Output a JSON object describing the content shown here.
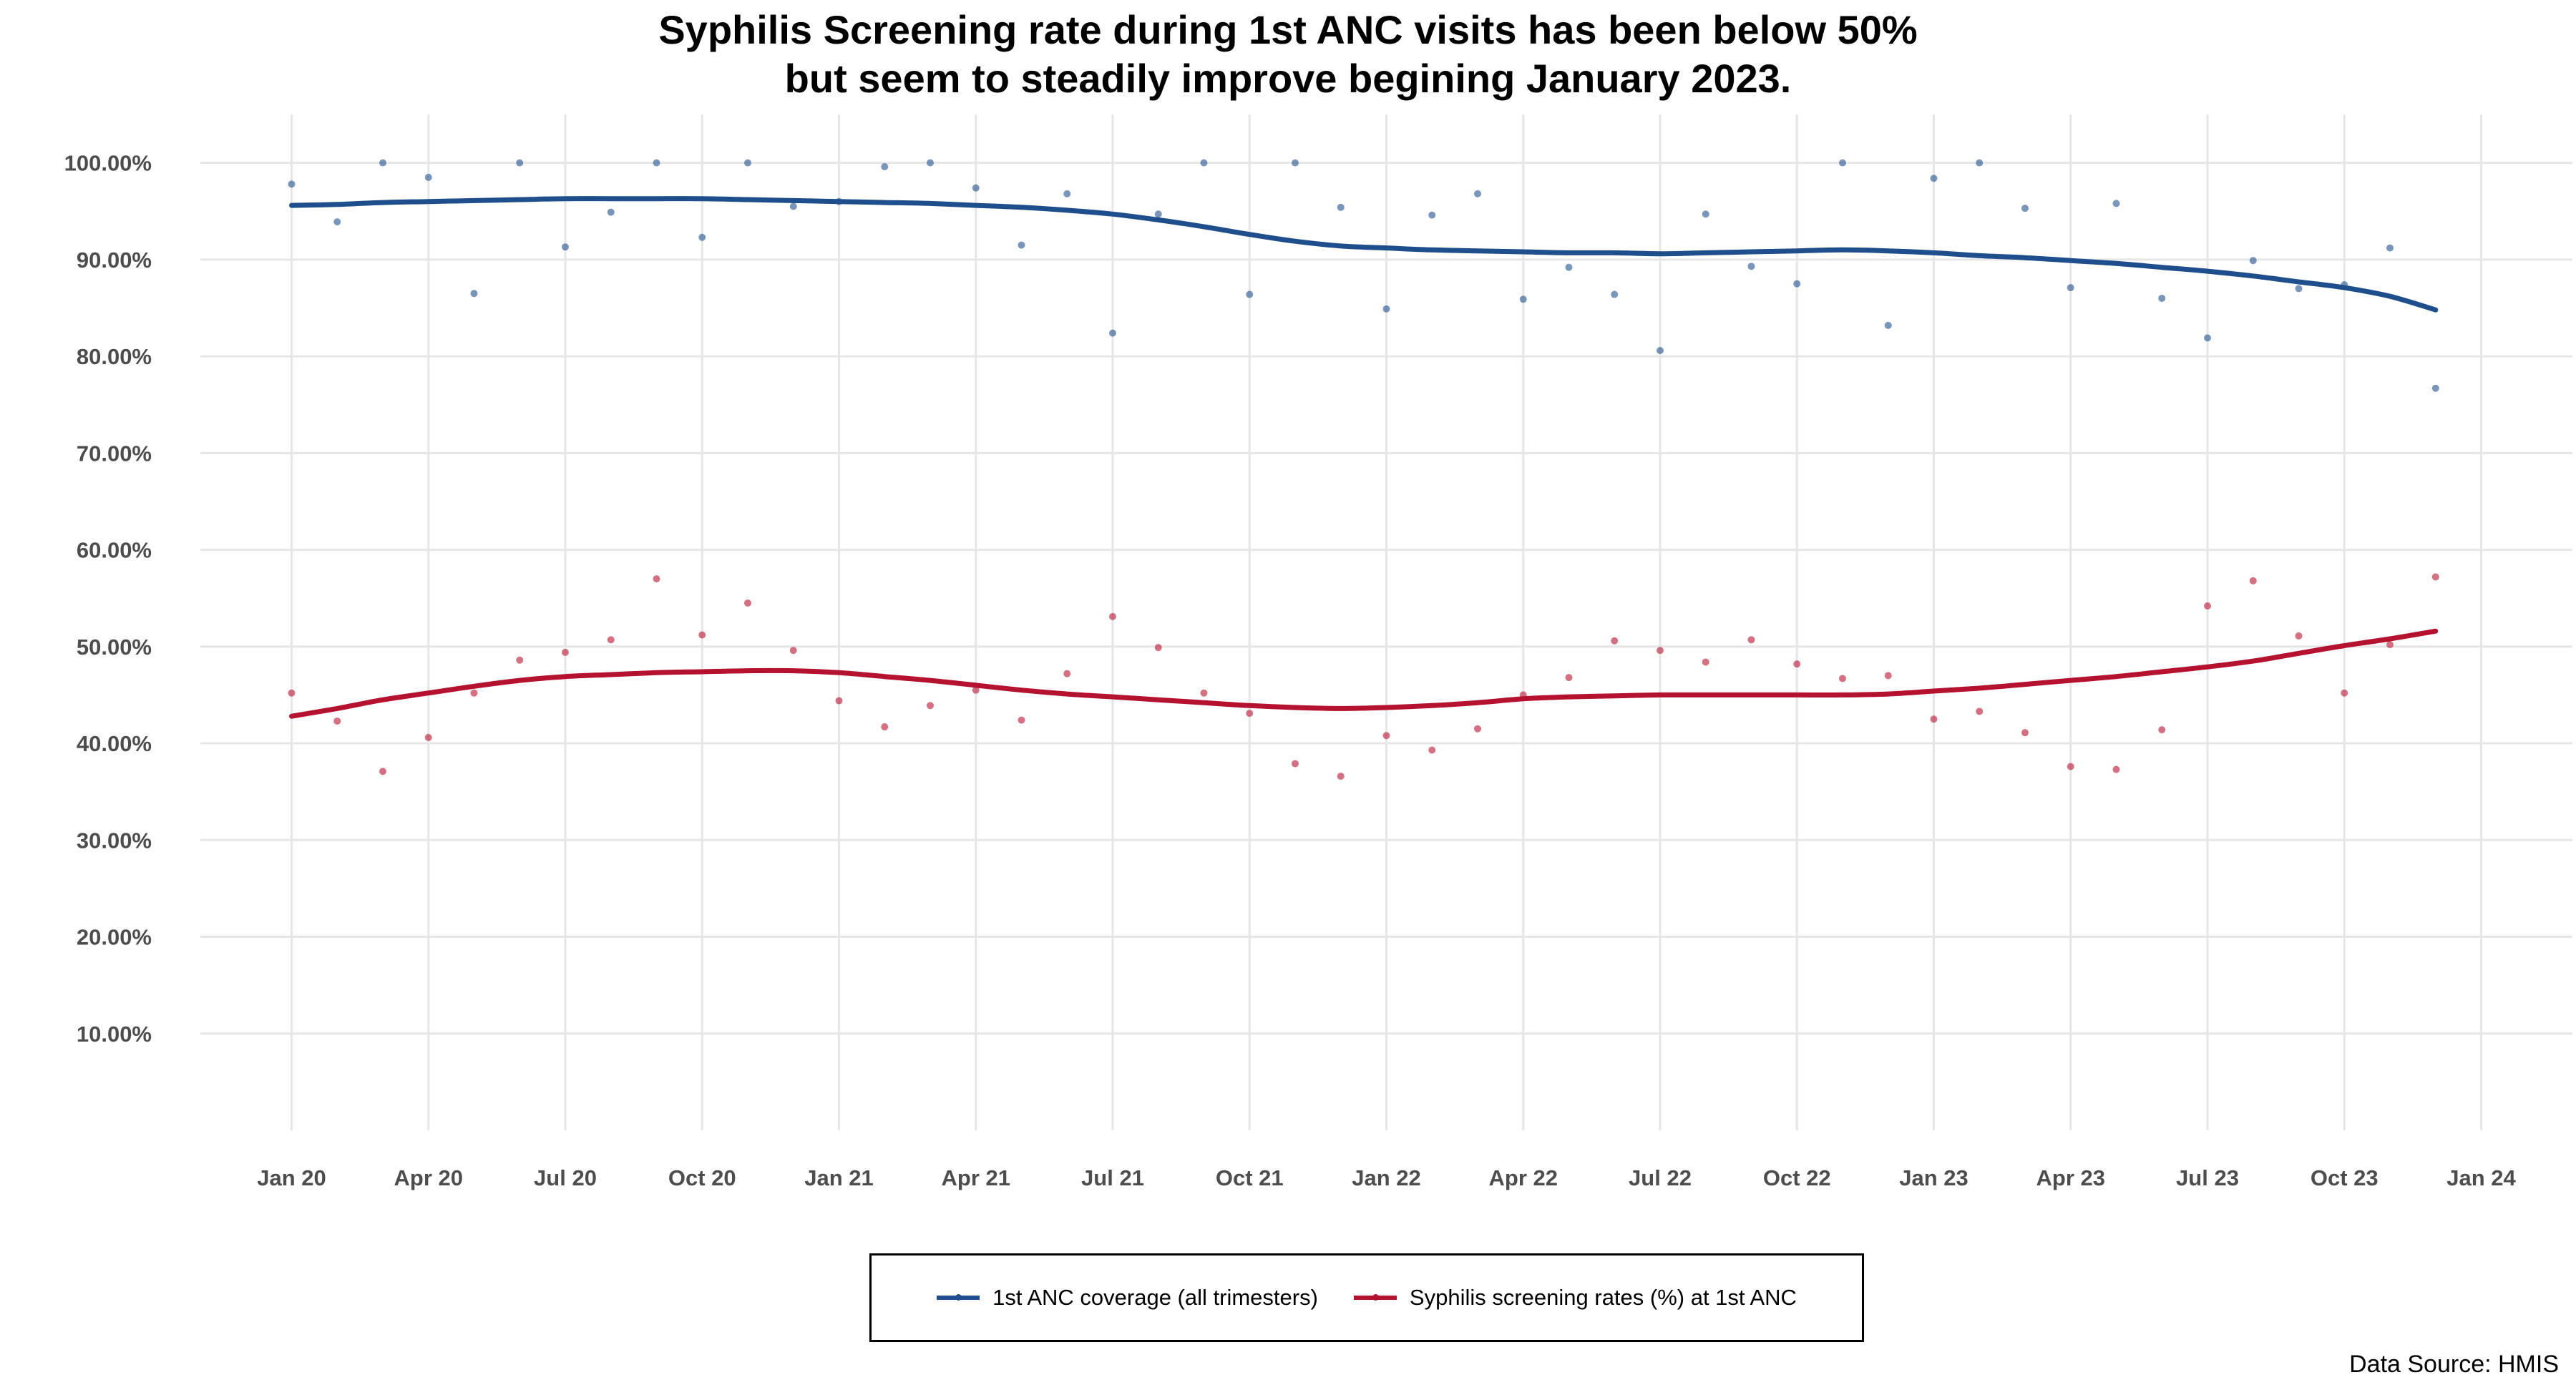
{
  "title_lines": [
    "Syphilis Screening rate during 1st ANC visits has been below 50%",
    "but seem to steadily improve begining January 2023."
  ],
  "source": "Data Source: HMIS",
  "colors": {
    "coverage": "#1f4e8c",
    "syphilis": "#b5122f",
    "grid": "#e6e6e6"
  },
  "chart_data": {
    "type": "scatter",
    "title": "Syphilis Screening rate during 1st ANC visits has been below 50% but seem to steadily improve begining January 2023.",
    "xlabel": "",
    "ylabel": "",
    "xlim": [
      "2019-11",
      "2024-03"
    ],
    "ylim": [
      0,
      105
    ],
    "yticks": [
      10,
      20,
      30,
      40,
      50,
      60,
      70,
      80,
      90,
      100
    ],
    "ytick_labels": [
      "10.00%",
      "20.00%",
      "30.00%",
      "40.00%",
      "50.00%",
      "60.00%",
      "70.00%",
      "80.00%",
      "90.00%",
      "100.00%"
    ],
    "xticks": [
      "2020-01",
      "2020-04",
      "2020-07",
      "2020-10",
      "2021-01",
      "2021-04",
      "2021-07",
      "2021-10",
      "2022-01",
      "2022-04",
      "2022-07",
      "2022-10",
      "2023-01",
      "2023-04",
      "2023-07",
      "2023-10",
      "2024-01"
    ],
    "xtick_labels": [
      "Jan 20",
      "Apr 20",
      "Jul 20",
      "Oct 20",
      "Jan 21",
      "Apr 21",
      "Jul 21",
      "Oct 21",
      "Jan 22",
      "Apr 22",
      "Jul 22",
      "Oct 22",
      "Jan 23",
      "Apr 23",
      "Jul 23",
      "Oct 23",
      "Jan 24"
    ],
    "grid": true,
    "legend_position": "bottom",
    "x": [
      "2020-01",
      "2020-02",
      "2020-03",
      "2020-04",
      "2020-05",
      "2020-06",
      "2020-07",
      "2020-08",
      "2020-09",
      "2020-10",
      "2020-11",
      "2020-12",
      "2021-01",
      "2021-02",
      "2021-03",
      "2021-04",
      "2021-05",
      "2021-06",
      "2021-07",
      "2021-08",
      "2021-09",
      "2021-10",
      "2021-11",
      "2021-12",
      "2022-01",
      "2022-02",
      "2022-03",
      "2022-04",
      "2022-05",
      "2022-06",
      "2022-07",
      "2022-08",
      "2022-09",
      "2022-10",
      "2022-11",
      "2022-12",
      "2023-01",
      "2023-02",
      "2023-03",
      "2023-04",
      "2023-05",
      "2023-06",
      "2023-07",
      "2023-08",
      "2023-09",
      "2023-10",
      "2023-11",
      "2023-12"
    ],
    "series": [
      {
        "name": "1st ANC coverage (all trimesters)",
        "values": [
          97.8,
          93.9,
          100,
          98.5,
          86.5,
          100,
          91.3,
          94.9,
          100,
          92.3,
          100,
          95.5,
          96.0,
          99.6,
          100,
          97.4,
          91.5,
          96.8,
          82.4,
          94.7,
          100,
          86.4,
          100,
          95.4,
          84.9,
          94.6,
          96.8,
          85.9,
          89.2,
          86.4,
          80.6,
          94.7,
          89.3,
          87.5,
          100,
          83.2,
          98.4,
          100,
          95.3,
          87.1,
          95.8,
          86.0,
          81.9,
          89.9,
          87.0,
          87.4,
          91.2,
          76.7
        ],
        "trend": [
          95.6,
          95.7,
          95.9,
          96.0,
          96.1,
          96.2,
          96.3,
          96.3,
          96.3,
          96.3,
          96.2,
          96.1,
          96.0,
          95.9,
          95.8,
          95.6,
          95.4,
          95.1,
          94.7,
          94.1,
          93.4,
          92.6,
          91.9,
          91.4,
          91.2,
          91.0,
          90.9,
          90.8,
          90.7,
          90.7,
          90.6,
          90.7,
          90.8,
          90.9,
          91.0,
          90.9,
          90.7,
          90.4,
          90.2,
          89.9,
          89.6,
          89.2,
          88.8,
          88.3,
          87.7,
          87.1,
          86.2,
          84.8
        ]
      },
      {
        "name": "Syphilis screening rates (%) at 1st ANC",
        "values": [
          45.2,
          42.3,
          37.1,
          40.6,
          45.2,
          48.6,
          49.4,
          50.7,
          57.0,
          51.2,
          54.5,
          49.6,
          44.4,
          41.7,
          43.9,
          45.5,
          42.4,
          47.2,
          53.1,
          49.9,
          45.2,
          43.1,
          37.9,
          36.6,
          40.8,
          39.3,
          41.5,
          45.0,
          46.8,
          50.6,
          49.6,
          48.4,
          50.7,
          48.2,
          46.7,
          47.0,
          42.5,
          43.3,
          41.1,
          37.6,
          37.3,
          41.4,
          54.2,
          56.8,
          51.1,
          45.2,
          50.2,
          57.2
        ],
        "trend": [
          42.8,
          43.6,
          44.5,
          45.2,
          45.9,
          46.5,
          46.9,
          47.1,
          47.3,
          47.4,
          47.5,
          47.5,
          47.3,
          46.9,
          46.5,
          46.0,
          45.5,
          45.1,
          44.8,
          44.5,
          44.2,
          43.9,
          43.7,
          43.6,
          43.7,
          43.9,
          44.2,
          44.6,
          44.8,
          44.9,
          45.0,
          45.0,
          45.0,
          45.0,
          45.0,
          45.1,
          45.4,
          45.7,
          46.1,
          46.5,
          46.9,
          47.4,
          47.9,
          48.5,
          49.3,
          50.1,
          50.8,
          51.6
        ]
      }
    ]
  }
}
